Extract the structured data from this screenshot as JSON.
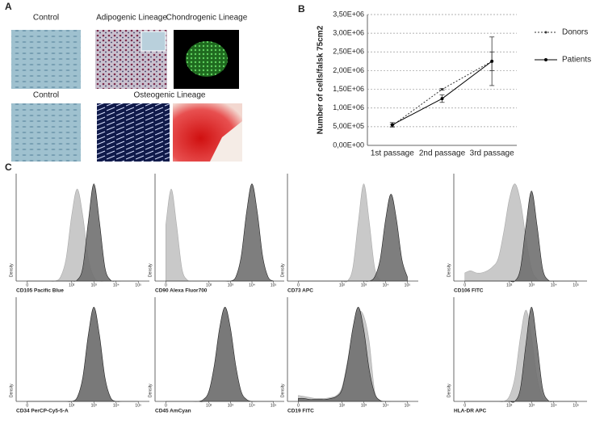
{
  "panel_labels": [
    "A",
    "B",
    "C"
  ],
  "micrographs": {
    "row1": [
      "Control",
      "Adipogenic Lineage",
      "Chondrogenic Lineage"
    ],
    "row2": [
      "Control",
      "Osteogenic Lineage"
    ]
  },
  "chart_data": [
    {
      "type": "line",
      "ylabel": "Number of cells/falsk 75cm2",
      "categories": [
        "1st passage",
        "2nd passage",
        "3rd passage"
      ],
      "ylim": [
        0,
        3500000
      ],
      "yticks": [
        {
          "value": 0,
          "label": "0,00E+00"
        },
        {
          "value": 500000,
          "label": "5,00E+05"
        },
        {
          "value": 1000000,
          "label": "1,00E+06"
        },
        {
          "value": 1500000,
          "label": "1,50E+06"
        },
        {
          "value": 2000000,
          "label": "2,00E+06"
        },
        {
          "value": 2500000,
          "label": "2,50E+06"
        },
        {
          "value": 3000000,
          "label": "3,00E+06"
        },
        {
          "value": 3500000,
          "label": "3,50E+06"
        }
      ],
      "grid": true,
      "legend": "right",
      "series": [
        {
          "name": "Donors",
          "color": "#333333",
          "dash": true,
          "values": [
            530000,
            1500000,
            2250000
          ],
          "errors": [
            30000,
            20000,
            250000
          ]
        },
        {
          "name": "Patients",
          "color": "#000000",
          "dash": false,
          "values": [
            550000,
            1250000,
            2250000
          ],
          "errors": [
            60000,
            100000,
            650000
          ]
        }
      ]
    },
    {
      "type": "density",
      "xlabel": "CD105 Pacific Blue",
      "ylabel": "Density",
      "xlim": [
        -0.5,
        5.5
      ],
      "ylim": [
        0,
        105
      ],
      "xticks": [
        {
          "value": 0,
          "label": "0"
        },
        {
          "value": 2,
          "label": "10²"
        },
        {
          "value": 3,
          "label": "10³"
        },
        {
          "value": 4,
          "label": "10⁴"
        },
        {
          "value": 5,
          "label": "10⁵"
        }
      ],
      "x": [
        0,
        0.25,
        0.5,
        0.75,
        1,
        1.25,
        1.5,
        1.75,
        2,
        2.25,
        2.5,
        2.75,
        3,
        3.25,
        3.5,
        3.75,
        4,
        4.25,
        4.5,
        4.75,
        5
      ],
      "series": [
        {
          "color": "#c9c9c9",
          "values": [
            0,
            0,
            0,
            0,
            0,
            0,
            4,
            22,
            64,
            90,
            64,
            22,
            4,
            0,
            0,
            0,
            0,
            0,
            0,
            0,
            0
          ]
        },
        {
          "color": "#707070",
          "values": [
            0,
            0,
            0,
            0,
            0,
            0,
            0,
            0,
            0,
            1,
            13,
            58,
            95,
            58,
            13,
            1,
            0,
            0,
            0,
            0,
            0
          ]
        }
      ]
    },
    {
      "type": "density",
      "xlabel": "CD90 Alexa Fluor700",
      "ylabel": "Density",
      "xlim": [
        -0.5,
        5.5
      ],
      "ylim": [
        0,
        105
      ],
      "xticks": [
        {
          "value": 0,
          "label": "0"
        },
        {
          "value": 2,
          "label": "10²"
        },
        {
          "value": 3,
          "label": "10³"
        },
        {
          "value": 4,
          "label": "10⁴"
        },
        {
          "value": 5,
          "label": "10⁵"
        }
      ],
      "x": [
        0,
        0.25,
        0.5,
        0.75,
        1,
        1.25,
        1.5,
        1.75,
        2,
        2.25,
        2.5,
        2.75,
        3,
        3.25,
        3.5,
        3.75,
        4,
        4.25,
        4.5,
        4.75,
        5
      ],
      "series": [
        {
          "color": "#c9c9c9",
          "values": [
            55,
            90,
            55,
            12,
            1,
            0,
            0,
            0,
            0,
            0,
            0,
            0,
            0,
            0,
            0,
            0,
            0,
            0,
            0,
            0,
            0
          ]
        },
        {
          "color": "#707070",
          "values": [
            0,
            0,
            0,
            0,
            0,
            0,
            0,
            0,
            0,
            0,
            0,
            0,
            0,
            4,
            24,
            67,
            95,
            67,
            24,
            4,
            0
          ]
        }
      ]
    },
    {
      "type": "density",
      "xlabel": "CD73 APC",
      "ylabel": "Density",
      "xlim": [
        -0.5,
        5.5
      ],
      "ylim": [
        0,
        105
      ],
      "xticks": [
        {
          "value": 0,
          "label": "0"
        },
        {
          "value": 2,
          "label": "10²"
        },
        {
          "value": 3,
          "label": "10³"
        },
        {
          "value": 4,
          "label": "10⁴"
        },
        {
          "value": 5,
          "label": "10⁵"
        }
      ],
      "x": [
        0,
        0.25,
        0.5,
        0.75,
        1,
        1.25,
        1.5,
        1.75,
        2,
        2.25,
        2.5,
        2.75,
        3,
        3.25,
        3.5,
        3.75,
        4,
        4.25,
        4.5,
        4.75,
        5
      ],
      "series": [
        {
          "color": "#c9c9c9",
          "values": [
            0,
            0,
            0,
            0,
            0,
            0,
            0,
            0,
            0,
            0,
            13,
            58,
            95,
            58,
            13,
            1,
            0,
            0,
            0,
            0,
            0
          ]
        },
        {
          "color": "#707070",
          "values": [
            0,
            0,
            0,
            0,
            0,
            0,
            0,
            0,
            0,
            0,
            0,
            0,
            0,
            0,
            4,
            21,
            60,
            85,
            60,
            21,
            4
          ]
        }
      ]
    },
    {
      "type": "density",
      "xlabel": "CD106 FITC",
      "ylabel": "Density",
      "xlim": [
        -0.5,
        5.5
      ],
      "ylim": [
        0,
        105
      ],
      "xticks": [
        {
          "value": 0,
          "label": "0"
        },
        {
          "value": 2,
          "label": "10²"
        },
        {
          "value": 3,
          "label": "10³"
        },
        {
          "value": 4,
          "label": "10⁴"
        },
        {
          "value": 5,
          "label": "10⁵"
        }
      ],
      "x": [
        0,
        0.25,
        0.5,
        0.75,
        1,
        1.25,
        1.5,
        1.75,
        2,
        2.25,
        2.5,
        2.75,
        3,
        3.25,
        3.5,
        3.75,
        4,
        4.25,
        4.5,
        4.75,
        5
      ],
      "series": [
        {
          "color": "#c9c9c9",
          "values": [
            8,
            10,
            8,
            8,
            10,
            14,
            22,
            48,
            80,
            95,
            78,
            42,
            12,
            2,
            0,
            0,
            0,
            0,
            0,
            0,
            0
          ]
        },
        {
          "color": "#707070",
          "values": [
            0,
            0,
            0,
            0,
            0,
            0,
            0,
            0,
            0,
            0,
            12,
            54,
            88,
            54,
            12,
            1,
            0,
            0,
            0,
            0,
            0
          ]
        }
      ]
    },
    {
      "type": "density",
      "xlabel": "CD34 PerCP-Cy5-5-A",
      "ylabel": "Density",
      "xlim": [
        -0.5,
        5.5
      ],
      "ylim": [
        0,
        105
      ],
      "xticks": [
        {
          "value": 0,
          "label": "0"
        },
        {
          "value": 2,
          "label": "10²"
        },
        {
          "value": 3,
          "label": "10³"
        },
        {
          "value": 4,
          "label": "10⁴"
        },
        {
          "value": 5,
          "label": "10⁵"
        }
      ],
      "x": [
        0,
        0.25,
        0.5,
        0.75,
        1,
        1.25,
        1.5,
        1.75,
        2,
        2.25,
        2.5,
        2.75,
        3,
        3.25,
        3.5,
        3.75,
        4,
        4.25,
        4.5,
        4.75,
        5
      ],
      "series": [
        {
          "color": "#c9c9c9",
          "values": [
            0,
            0,
            0,
            0,
            0,
            0,
            0,
            0,
            0,
            4,
            22,
            65,
            90,
            62,
            20,
            3,
            0,
            0,
            0,
            0,
            0
          ]
        },
        {
          "color": "#707070",
          "values": [
            0,
            0,
            0,
            0,
            0,
            0,
            0,
            0,
            0,
            4,
            24,
            67,
            95,
            67,
            24,
            4,
            0,
            0,
            0,
            0,
            0
          ]
        }
      ]
    },
    {
      "type": "density",
      "xlabel": "CD45 AmCyan",
      "ylabel": "Density",
      "xlim": [
        -0.5,
        5.5
      ],
      "ylim": [
        0,
        105
      ],
      "xticks": [
        {
          "value": 0,
          "label": "0"
        },
        {
          "value": 2,
          "label": "10²"
        },
        {
          "value": 3,
          "label": "10³"
        },
        {
          "value": 4,
          "label": "10⁴"
        },
        {
          "value": 5,
          "label": "10⁵"
        }
      ],
      "x": [
        0,
        0.25,
        0.5,
        0.75,
        1,
        1.25,
        1.5,
        1.75,
        2,
        2.25,
        2.5,
        2.75,
        3,
        3.25,
        3.5,
        3.75,
        4,
        4.25,
        4.5,
        4.75,
        5
      ],
      "series": [
        {
          "color": "#c9c9c9",
          "values": [
            0,
            0,
            0,
            0,
            0,
            0,
            0,
            0,
            10,
            32,
            70,
            90,
            68,
            30,
            8,
            1,
            0,
            0,
            0,
            0,
            0
          ]
        },
        {
          "color": "#707070",
          "values": [
            0,
            0,
            0,
            0,
            0,
            0,
            0,
            2,
            10,
            36,
            74,
            95,
            74,
            36,
            10,
            2,
            0,
            0,
            0,
            0,
            0
          ]
        }
      ]
    },
    {
      "type": "density",
      "xlabel": "CD19 FITC",
      "ylabel": "Density",
      "xlim": [
        -0.5,
        5.5
      ],
      "ylim": [
        0,
        105
      ],
      "xticks": [
        {
          "value": 0,
          "label": "0"
        },
        {
          "value": 2,
          "label": "10²"
        },
        {
          "value": 3,
          "label": "10³"
        },
        {
          "value": 4,
          "label": "10⁴"
        },
        {
          "value": 5,
          "label": "10⁵"
        }
      ],
      "x": [
        0,
        0.25,
        0.5,
        0.75,
        1,
        1.25,
        1.5,
        1.75,
        2,
        2.25,
        2.5,
        2.75,
        3,
        3.25,
        3.5,
        3.75,
        4,
        4.25,
        4.5,
        4.75,
        5
      ],
      "series": [
        {
          "color": "#c9c9c9",
          "values": [
            6,
            5,
            4,
            3,
            3,
            3,
            4,
            6,
            14,
            40,
            72,
            90,
            86,
            60,
            10,
            1,
            0,
            0,
            0,
            0,
            0
          ]
        },
        {
          "color": "#707070",
          "values": [
            3,
            3,
            2,
            2,
            2,
            2,
            3,
            5,
            12,
            38,
            74,
            95,
            72,
            32,
            8,
            1,
            0,
            0,
            0,
            0,
            0
          ]
        }
      ]
    },
    {
      "type": "density",
      "xlabel": "HLA-DR APC",
      "ylabel": "Density",
      "xlim": [
        -0.5,
        5.5
      ],
      "ylim": [
        0,
        105
      ],
      "xticks": [
        {
          "value": 0,
          "label": "0"
        },
        {
          "value": 2,
          "label": "10²"
        },
        {
          "value": 3,
          "label": "10³"
        },
        {
          "value": 4,
          "label": "10⁴"
        },
        {
          "value": 5,
          "label": "10⁵"
        }
      ],
      "x": [
        0,
        0.25,
        0.5,
        0.75,
        1,
        1.25,
        1.5,
        1.75,
        2,
        2.25,
        2.5,
        2.75,
        3,
        3.25,
        3.5,
        3.75,
        4,
        4.25,
        4.5,
        4.75,
        5
      ],
      "series": [
        {
          "color": "#c9c9c9",
          "values": [
            0,
            0,
            0,
            0,
            0,
            0,
            0,
            0,
            5,
            24,
            65,
            92,
            65,
            24,
            4,
            0,
            0,
            0,
            0,
            0,
            0
          ]
        },
        {
          "color": "#707070",
          "values": [
            0,
            0,
            0,
            0,
            0,
            0,
            0,
            0,
            0,
            0,
            13,
            58,
            95,
            58,
            13,
            1,
            0,
            0,
            0,
            0,
            0
          ]
        }
      ]
    }
  ]
}
